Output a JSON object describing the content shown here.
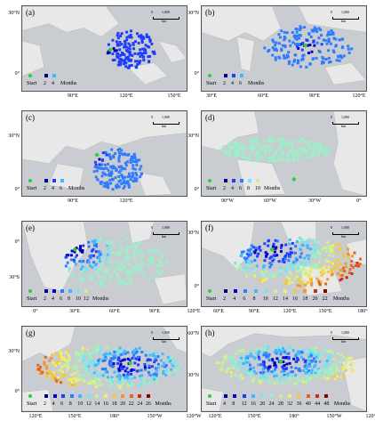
{
  "colors": {
    "ocean": "#c9cdd2",
    "land": "#e8e8e8",
    "start": "#2ecc40",
    "scale_low": "#00008b",
    "scale_high": "#8b0000"
  },
  "legend_start": "Start",
  "legend_months": "Months",
  "scale": {
    "zero": "0",
    "value": "1,000",
    "unit": "km"
  },
  "panels": [
    {
      "label": "(a)",
      "lat": [
        "30°N",
        "0°"
      ],
      "lon": [
        "90°E",
        "120°E",
        "150°E"
      ],
      "ticks": [
        "2",
        "4"
      ]
    },
    {
      "label": "(b)",
      "lat": [
        "30°N",
        "0°"
      ],
      "lon": [
        "30°E",
        "60°E",
        "90°E",
        "120°E"
      ],
      "ticks": [
        "2",
        "4",
        "6"
      ]
    },
    {
      "label": "(c)",
      "lat": [
        "30°N",
        "0°"
      ],
      "lon": [
        "90°E",
        "120°E"
      ],
      "ticks": [
        "2",
        "4",
        "6"
      ]
    },
    {
      "label": "(d)",
      "lat": [
        "30°N",
        "0°"
      ],
      "lon": [
        "90°W",
        "60°W",
        "30°W",
        "0°"
      ],
      "ticks": [
        "2",
        "4",
        "6",
        "8",
        "10"
      ]
    },
    {
      "label": "(e)",
      "lat": [
        "0°",
        "30°S"
      ],
      "lon": [
        "0°",
        "30°E",
        "60°E",
        "90°E",
        "120°E"
      ],
      "ticks": [
        "2",
        "4",
        "6",
        "8",
        "10",
        "12"
      ]
    },
    {
      "label": "(f)",
      "lat": [
        "30°N",
        "0°"
      ],
      "lon": [
        "60°E",
        "90°E",
        "120°E",
        "150°E",
        "180°"
      ],
      "ticks": [
        "2",
        "4",
        "6",
        "8",
        "10",
        "12",
        "14",
        "16",
        "18",
        "20",
        "22"
      ]
    },
    {
      "label": "(g)",
      "lat": [
        "30°N",
        "0°"
      ],
      "lon": [
        "120°E",
        "150°E",
        "180°",
        "150°W",
        "120°W"
      ],
      "ticks": [
        "2",
        "4",
        "6",
        "8",
        "10",
        "12",
        "14",
        "16",
        "18",
        "20",
        "22",
        "24",
        "26"
      ]
    },
    {
      "label": "(h)",
      "lat": [
        "60°N",
        "30°N"
      ],
      "lon": [
        "120°E",
        "150°E",
        "180°",
        "150°W",
        "120°W"
      ],
      "ticks": [
        "4",
        "8",
        "12",
        "16",
        "20",
        "24",
        "28",
        "32",
        "36",
        "40",
        "44",
        "48"
      ]
    }
  ]
}
